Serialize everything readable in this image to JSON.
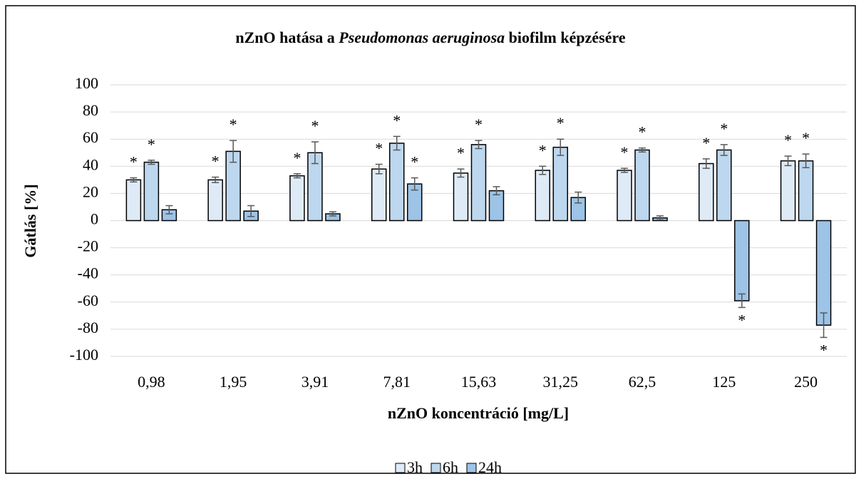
{
  "chart_data": {
    "type": "bar",
    "title": [
      "nZnO hatása a ",
      "Pseudomonas aeruginosa",
      " biofilm képzésére"
    ],
    "x_label": "nZnO koncentráció [mg/L]",
    "y_label": "Gátlás [%]",
    "categories": [
      "0,98",
      "1,95",
      "3,91",
      "7,81",
      "15,63",
      "31,25",
      "62,5",
      "125",
      "250"
    ],
    "series": [
      {
        "name": "3h",
        "color": "#deebf7",
        "values": [
          30,
          30,
          33,
          38,
          35,
          37,
          37,
          42,
          44
        ],
        "errors": [
          1.5,
          2,
          1.5,
          3.5,
          3,
          3,
          1.5,
          3.5,
          3.5
        ],
        "annotations": [
          "*",
          "*",
          "*",
          "*",
          "*",
          "*",
          "*",
          "*",
          "*"
        ]
      },
      {
        "name": "6h",
        "color": "#bdd7ee",
        "values": [
          43,
          51,
          50,
          57,
          56,
          54,
          52,
          52,
          44
        ],
        "errors": [
          1.5,
          8,
          8,
          5,
          3,
          6,
          1.5,
          4,
          5
        ],
        "annotations": [
          "*",
          "*",
          "*",
          "*",
          "*",
          "*",
          "*",
          "*",
          "*"
        ]
      },
      {
        "name": "24h",
        "color": "#9dc3e6",
        "values": [
          8,
          7,
          5,
          27,
          22,
          17,
          2,
          -59,
          -77
        ],
        "errors": [
          3,
          4,
          1.5,
          4.5,
          3,
          4,
          1.5,
          5,
          9
        ],
        "annotations": [
          null,
          null,
          null,
          "*",
          null,
          null,
          null,
          "*",
          "*"
        ]
      }
    ],
    "ylim": [
      -100,
      100
    ],
    "yticks": [
      -100,
      -80,
      -60,
      -40,
      -20,
      0,
      20,
      40,
      60,
      80,
      100
    ],
    "grid": true,
    "legend": "bottom"
  }
}
